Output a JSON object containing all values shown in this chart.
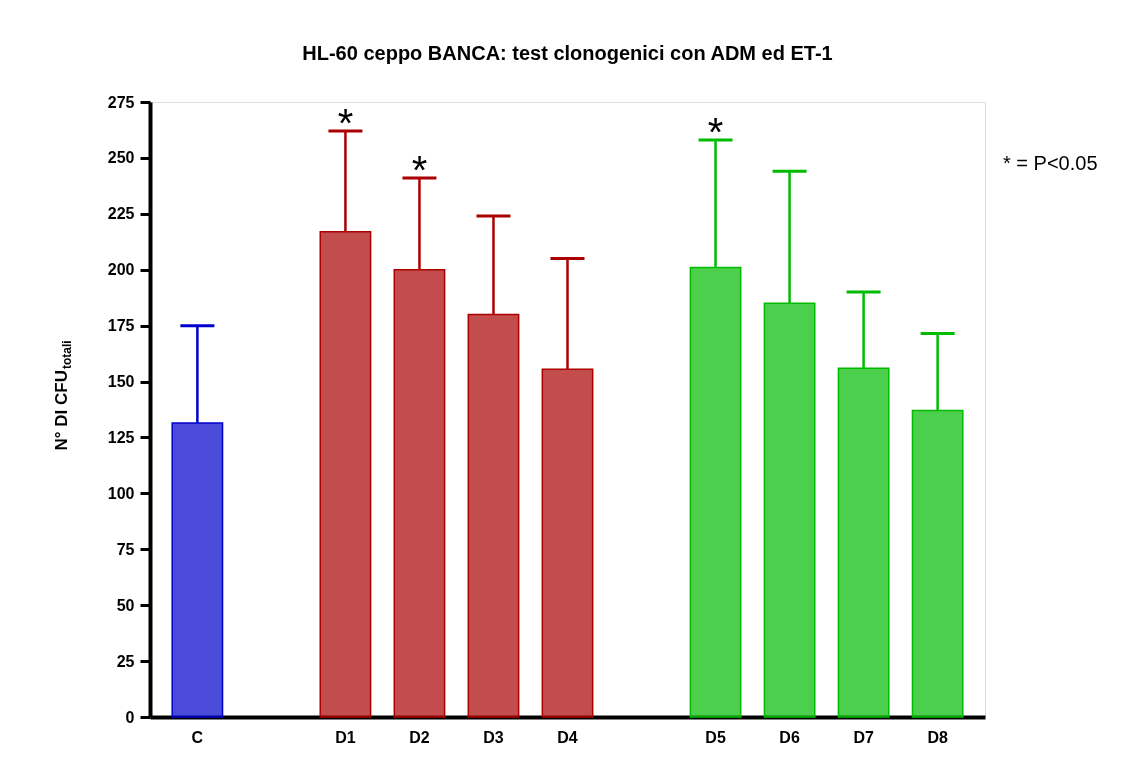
{
  "chart_data": {
    "type": "bar",
    "title": "HL-60 ceppo BANCA: test clonogenici con ADM ed ET-1",
    "ylabel": "N° DI CFU$_{totali}$",
    "categories": [
      "C",
      null,
      "D1",
      "D2",
      "D3",
      "D4",
      null,
      "D5",
      "D6",
      "D7",
      "D8"
    ],
    "values": [
      131.5,
      null,
      217,
      200,
      180,
      155.5,
      null,
      201,
      185,
      156,
      137
    ],
    "errors": [
      [
        131.5,
        175
      ],
      null,
      [
        217,
        262
      ],
      [
        200,
        241
      ],
      [
        180,
        224
      ],
      [
        155.5,
        205
      ],
      null,
      [
        201,
        258
      ],
      [
        185,
        244
      ],
      [
        156,
        190
      ],
      [
        137,
        171.5
      ]
    ],
    "colors": [
      "#0000cc",
      null,
      "#aa0000",
      "#aa0000",
      "#aa0000",
      "#aa0000",
      null,
      "#00bb00",
      "#00bb00",
      "#00bb00",
      "#00bb00"
    ],
    "ylim": [
      0,
      275
    ],
    "yticks": [
      0,
      25,
      50,
      75,
      100,
      125,
      150,
      175,
      200,
      225,
      250,
      275
    ],
    "annotations": [
      {
        "text": "*",
        "x": "D1",
        "y": 262
      },
      {
        "text": "*",
        "x": "D2",
        "y": 241
      },
      {
        "text": "*",
        "x": "D5",
        "y": 258
      },
      "* = P<0.05"
    ]
  }
}
